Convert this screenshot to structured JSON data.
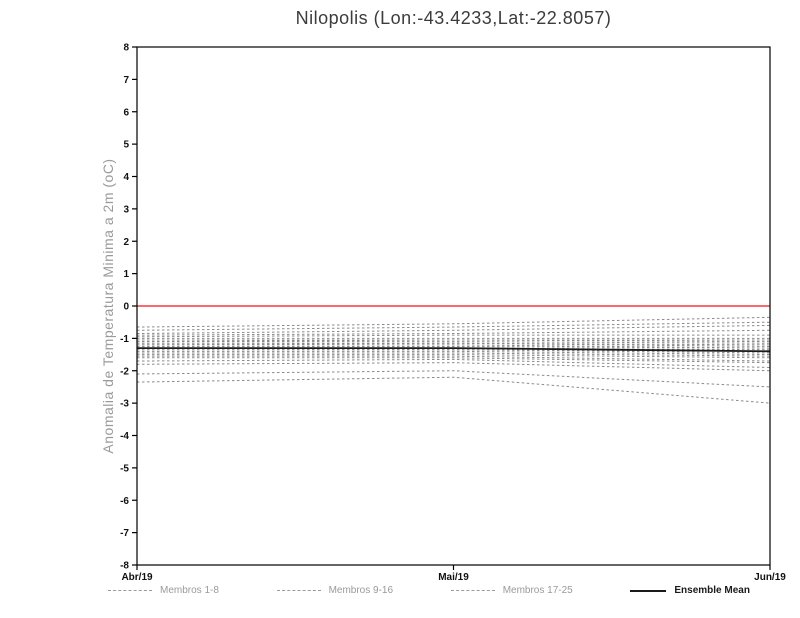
{
  "title": "Nilopolis (Lon:-43.4233,Lat:-22.8057)",
  "y_axis_label": "Anomalia de Temperatura Minima a 2m (oC)",
  "colors": {
    "reference_line": "#fa3a3a",
    "member_line": "#8a8a8a",
    "mean_line": "#1a1a1a",
    "axis": "#000000",
    "title_text": "#3c3c3c",
    "axis_label_text": "#9a9a9a"
  },
  "legend": {
    "items": [
      {
        "label": "Membros 1-8",
        "style": "dashed",
        "color": "#9a9a9a"
      },
      {
        "label": "Membros 9-16",
        "style": "dashed",
        "color": "#9a9a9a"
      },
      {
        "label": "Membros 17-25",
        "style": "dashed",
        "color": "#9a9a9a"
      },
      {
        "label": "Ensemble Mean",
        "style": "solid",
        "color": "#1a1a1a"
      }
    ]
  },
  "chart_data": {
    "type": "line",
    "title": "Nilopolis (Lon:-43.4233,Lat:-22.8057)",
    "xlabel": "",
    "ylabel": "Anomalia de Temperatura Minima a 2m (oC)",
    "x": [
      "Abr/19",
      "Mai/19",
      "Jun/19"
    ],
    "ylim": [
      -8,
      8
    ],
    "ytick_step": 1,
    "grid": false,
    "legend_position": "bottom",
    "reference_line": 0,
    "members": [
      [
        -0.65,
        -0.55,
        -0.35
      ],
      [
        -0.75,
        -0.65,
        -0.5
      ],
      [
        -0.85,
        -0.75,
        -0.6
      ],
      [
        -0.9,
        -0.85,
        -0.75
      ],
      [
        -0.95,
        -0.9,
        -0.9
      ],
      [
        -1.0,
        -1.0,
        -1.0
      ],
      [
        -1.05,
        -1.05,
        -1.05
      ],
      [
        -1.1,
        -1.05,
        -1.1
      ],
      [
        -1.1,
        -1.1,
        -1.15
      ],
      [
        -1.15,
        -1.15,
        -1.2
      ],
      [
        -1.2,
        -1.15,
        -1.25
      ],
      [
        -1.2,
        -1.2,
        -1.3
      ],
      [
        -1.25,
        -1.25,
        -1.3
      ],
      [
        -1.3,
        -1.3,
        -1.35
      ],
      [
        -1.3,
        -1.35,
        -1.4
      ],
      [
        -1.35,
        -1.35,
        -1.45
      ],
      [
        -1.4,
        -1.4,
        -1.5
      ],
      [
        -1.45,
        -1.45,
        -1.55
      ],
      [
        -1.5,
        -1.5,
        -1.6
      ],
      [
        -1.55,
        -1.55,
        -1.7
      ],
      [
        -1.6,
        -1.6,
        -1.75
      ],
      [
        -1.7,
        -1.65,
        -1.9
      ],
      [
        -1.8,
        -1.75,
        -2.0
      ],
      [
        -2.1,
        -2.0,
        -2.5
      ],
      [
        -2.35,
        -2.2,
        -3.0
      ]
    ],
    "ensemble_mean": [
      -1.3,
      -1.3,
      -1.4
    ]
  }
}
